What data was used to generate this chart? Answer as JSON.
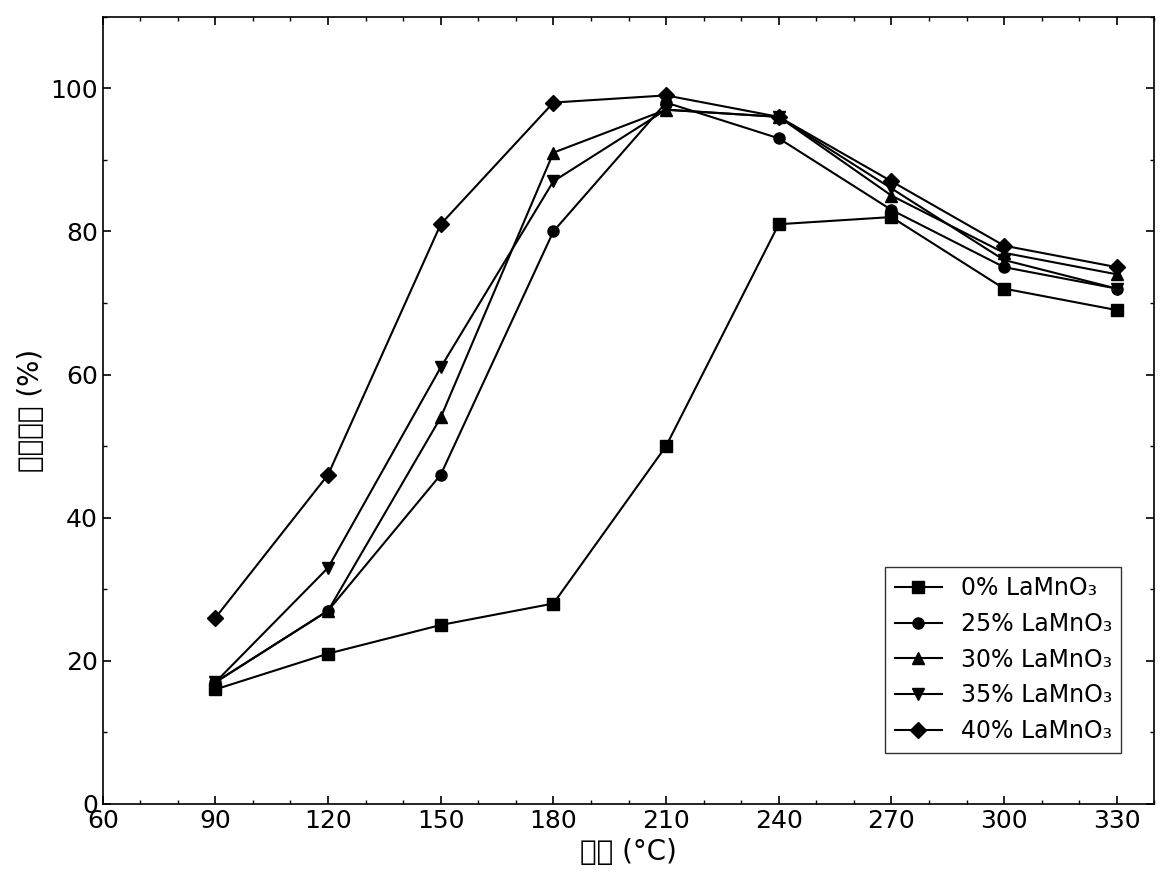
{
  "title": "",
  "xlabel": "温度 (°C)",
  "ylabel": "脱牁效率 (%)",
  "xlim": [
    60,
    340
  ],
  "ylim": [
    0,
    110
  ],
  "xticks": [
    60,
    90,
    120,
    150,
    180,
    210,
    240,
    270,
    300,
    330
  ],
  "yticks": [
    0,
    20,
    40,
    60,
    80,
    100
  ],
  "series": [
    {
      "label": "0% LaMnO₃",
      "x": [
        90,
        120,
        150,
        180,
        210,
        240,
        270,
        300,
        330
      ],
      "y": [
        16,
        21,
        25,
        28,
        50,
        81,
        82,
        72,
        69
      ],
      "marker": "s",
      "color": "black",
      "linestyle": "-"
    },
    {
      "label": "25% LaMnO₃",
      "x": [
        90,
        120,
        150,
        180,
        210,
        240,
        270,
        300,
        330
      ],
      "y": [
        17,
        27,
        46,
        80,
        98,
        93,
        83,
        75,
        72
      ],
      "marker": "o",
      "color": "black",
      "linestyle": "-"
    },
    {
      "label": "30% LaMnO₃",
      "x": [
        90,
        120,
        150,
        180,
        210,
        240,
        270,
        300,
        330
      ],
      "y": [
        17,
        27,
        54,
        91,
        97,
        96,
        85,
        77,
        74
      ],
      "marker": "^",
      "color": "black",
      "linestyle": "-"
    },
    {
      "label": "35% LaMnO₃",
      "x": [
        90,
        120,
        150,
        180,
        210,
        240,
        270,
        300,
        330
      ],
      "y": [
        17,
        33,
        61,
        87,
        97,
        96,
        86,
        76,
        72
      ],
      "marker": "v",
      "color": "black",
      "linestyle": "-"
    },
    {
      "label": "40% LaMnO₃",
      "x": [
        90,
        120,
        150,
        180,
        210,
        240,
        270,
        300,
        330
      ],
      "y": [
        26,
        46,
        81,
        98,
        99,
        96,
        87,
        78,
        75
      ],
      "marker": "D",
      "color": "black",
      "linestyle": "-"
    }
  ],
  "font_size": 20,
  "tick_font_size": 18,
  "marker_size": 8,
  "line_width": 1.5
}
